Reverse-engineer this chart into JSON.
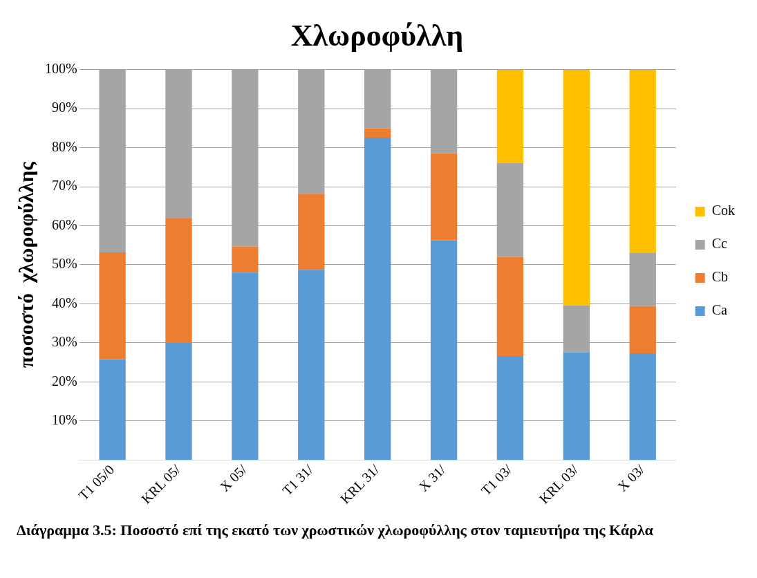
{
  "chart_data": {
    "type": "bar",
    "title": "Χλωροφύλλη",
    "ylabel": "ποσοστό  χλωροφύλλης",
    "categories": [
      "T1 05/0",
      "KRL 05/",
      "X 05/",
      "T1 31/",
      "KRL 31/",
      "X 31/",
      "T1 03/",
      "KRL 03/",
      "X 03/"
    ],
    "series": [
      {
        "name": "Ca",
        "color": "#5b9bd5",
        "values": [
          25.8,
          30.0,
          48.0,
          48.7,
          82.6,
          56.3,
          26.6,
          27.6,
          27.3
        ]
      },
      {
        "name": "Cb",
        "color": "#ed7d31",
        "values": [
          27.4,
          32.0,
          6.7,
          19.5,
          2.4,
          22.3,
          25.4,
          0,
          12.1
        ]
      },
      {
        "name": "Cc",
        "color": "#a5a5a5",
        "values": [
          46.8,
          38.0,
          45.3,
          31.8,
          15.0,
          21.4,
          24.1,
          12.0,
          13.6
        ]
      },
      {
        "name": "Cok",
        "color": "#ffc000",
        "values": [
          0,
          0,
          0,
          0,
          0,
          0,
          23.9,
          60.4,
          47.0
        ]
      }
    ],
    "stacked": true,
    "ylim": [
      0,
      100
    ],
    "yticks": [
      {
        "value": 10,
        "label": "10%"
      },
      {
        "value": 20,
        "label": "20%"
      },
      {
        "value": 30,
        "label": "30%"
      },
      {
        "value": 40,
        "label": "40%"
      },
      {
        "value": 50,
        "label": "50%"
      },
      {
        "value": 60,
        "label": "60%"
      },
      {
        "value": 70,
        "label": "70%"
      },
      {
        "value": 80,
        "label": "80%"
      },
      {
        "value": 90,
        "label": "90%"
      },
      {
        "value": 100,
        "label": "100%"
      }
    ],
    "grid": "y",
    "legend": "right",
    "annotations": [
      "Διάγραμμα 3.5: Ποσοστό επί της εκατό των χρωστικών χλωροφύλλης στον ταμιευτήρα της Κάρλα"
    ]
  }
}
